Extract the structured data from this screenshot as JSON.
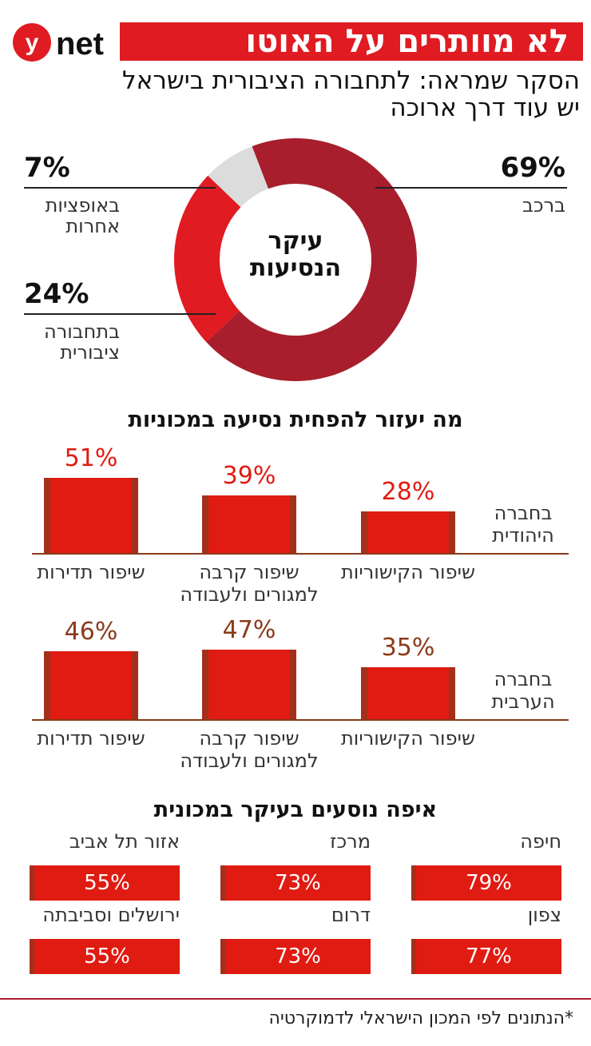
{
  "header": {
    "logo": "ynet",
    "title": "לא מוותרים על האוטו",
    "subtitle_line1": "הסקר שמראה: לתחבורה הציבורית בישראל",
    "subtitle_line2": "יש עוד דרך ארוכה"
  },
  "chart_data": [
    {
      "type": "pie",
      "title": "עיקר הנסיעות",
      "slices": [
        {
          "label": "ברכב",
          "value": 69,
          "display": "69%",
          "color": "#a81e2d"
        },
        {
          "label": "בתחבורה ציבורית",
          "value": 24,
          "display": "24%",
          "color": "#e01b22"
        },
        {
          "label": "באופציות אחרות",
          "value": 7,
          "display": "7%",
          "color": "#dcdcdc"
        }
      ]
    },
    {
      "type": "bar",
      "title": "מה יעזור להפחית נסיעה במכוניות",
      "categories": [
        "שיפור הקישוריות",
        "שיפור קרבה למגורים ולעבודה",
        "שיפור תדירות"
      ],
      "series": [
        {
          "name": "בחברה היהודית",
          "values": [
            28,
            39,
            51
          ],
          "display": [
            "28%",
            "39%",
            "51%"
          ],
          "label_color": "#e01b12"
        },
        {
          "name": "בחברה הערבית",
          "values": [
            35,
            47,
            46
          ],
          "display": [
            "35%",
            "47%",
            "46%"
          ],
          "label_color": "#8a3a1a"
        }
      ]
    },
    {
      "type": "bar",
      "title": "איפה נוסעים בעיקר במכונית",
      "categories": [
        "חיפה",
        "מרכז",
        "אזור תל אביב",
        "צפון",
        "דרום",
        "ירושלים וסביבתה"
      ],
      "values": [
        79,
        73,
        55,
        77,
        73,
        55
      ],
      "display": [
        "79%",
        "73%",
        "55%",
        "77%",
        "73%",
        "55%"
      ]
    }
  ],
  "footnote": "*הנתונים לפי המכון הישראלי לדמוקרטיה",
  "colors": {
    "brand_red": "#e01b22",
    "dark_red": "#a81e2d",
    "gray": "#dcdcdc"
  }
}
